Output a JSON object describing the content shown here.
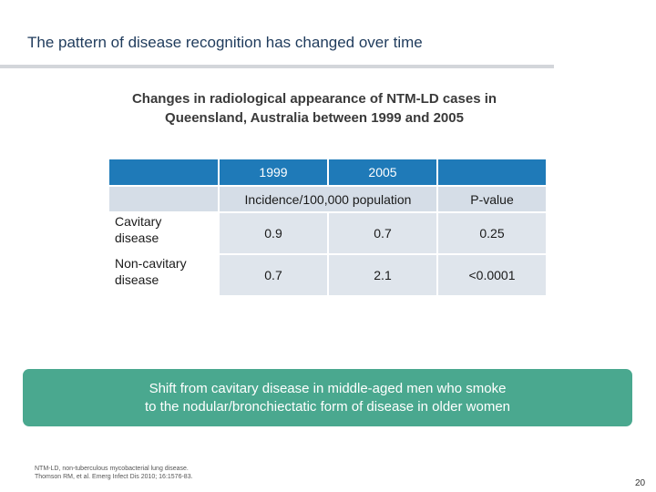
{
  "slide": {
    "title": "The pattern of disease recognition has changed over time",
    "subtitle_line1": "Changes in radiological appearance of NTM-LD cases in",
    "subtitle_line2": "Queensland, Australia between 1999 and 2005"
  },
  "table": {
    "header": {
      "year_1999": "1999",
      "year_2005": "2005",
      "empty": ""
    },
    "subheader": {
      "incidence": "Incidence/100,000 population",
      "pvalue": "P-value"
    },
    "rows": [
      {
        "label_line1": "Cavitary",
        "label_line2": "disease",
        "v1999": "0.9",
        "v2005": "0.7",
        "pvalue": "0.25"
      },
      {
        "label_line1": "Non-cavitary",
        "label_line2": "disease",
        "v1999": "0.7",
        "v2005": "2.1",
        "pvalue": "<0.0001"
      }
    ]
  },
  "callout": {
    "line1": "Shift from cavitary disease in middle-aged men who smoke",
    "line2": "to the nodular/bronchiectatic form of disease in older women"
  },
  "footnote": {
    "line1": "NTM-LD, non-tuberculous mycobacterial lung disease.",
    "line2": "Thomson RM, et al. Emerg Infect Dis 2010; 16:1576-83."
  },
  "page_number": "20"
}
